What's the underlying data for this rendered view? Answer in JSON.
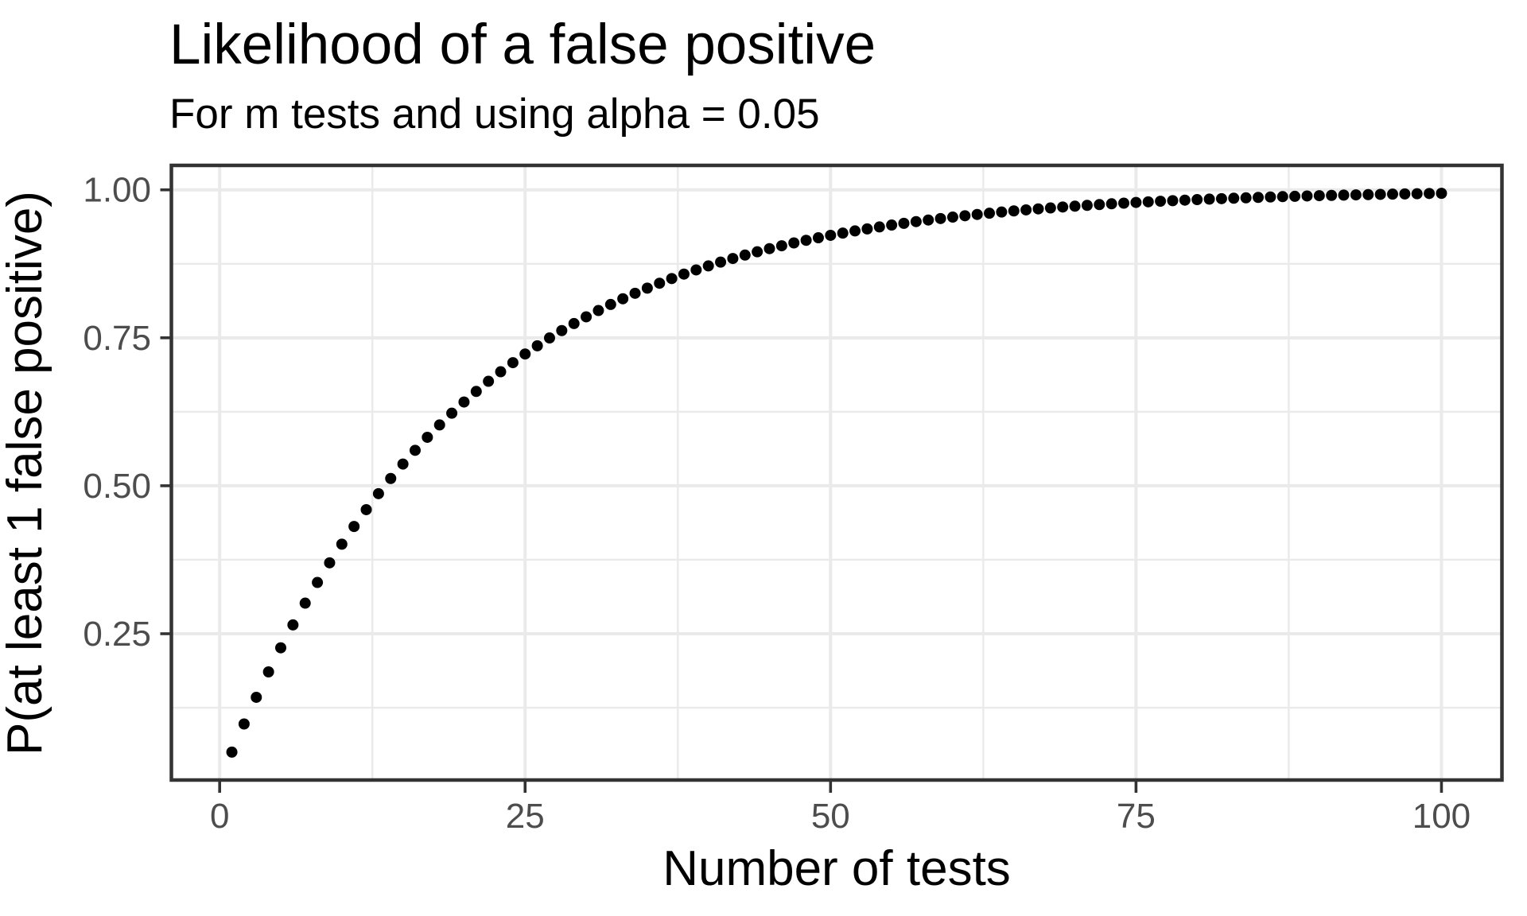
{
  "figure": {
    "title": "Likelihood of a false positive",
    "subtitle": "For m tests and using alpha = 0.05"
  },
  "colors": {
    "background": "#ffffff",
    "grid": "#eaeaea",
    "panel_border": "#333333",
    "tick": "#333333",
    "tick_label": "#4d4d4d",
    "title_text": "#000000",
    "point": "#000000"
  },
  "chart_data": {
    "type": "scatter",
    "title": "Likelihood of a false positive",
    "subtitle": "For m tests and using alpha = 0.05",
    "xlabel": "Number of tests",
    "ylabel": "P(at least 1 false positive)",
    "legend_position": "none",
    "grid": true,
    "point_shape": "filled-circle",
    "point_radius_px": 7,
    "xlim": [
      -3.95,
      104.95
    ],
    "ylim": [
      0.0028,
      1.0413
    ],
    "x_ticks": [
      0,
      25,
      50,
      75,
      100
    ],
    "x_tick_labels": [
      "0",
      "25",
      "50",
      "75",
      "100"
    ],
    "y_ticks": [
      0.25,
      0.5,
      0.75,
      1.0
    ],
    "y_tick_labels": [
      "0.25",
      "0.50",
      "0.75",
      "1.00"
    ],
    "x_minor": [
      12.5,
      37.5,
      62.5,
      87.5
    ],
    "y_minor": [
      0.125,
      0.375,
      0.625,
      0.875
    ],
    "x": [
      1,
      2,
      3,
      4,
      5,
      6,
      7,
      8,
      9,
      10,
      11,
      12,
      13,
      14,
      15,
      16,
      17,
      18,
      19,
      20,
      21,
      22,
      23,
      24,
      25,
      26,
      27,
      28,
      29,
      30,
      31,
      32,
      33,
      34,
      35,
      36,
      37,
      38,
      39,
      40,
      41,
      42,
      43,
      44,
      45,
      46,
      47,
      48,
      49,
      50,
      51,
      52,
      53,
      54,
      55,
      56,
      57,
      58,
      59,
      60,
      61,
      62,
      63,
      64,
      65,
      66,
      67,
      68,
      69,
      70,
      71,
      72,
      73,
      74,
      75,
      76,
      77,
      78,
      79,
      80,
      81,
      82,
      83,
      84,
      85,
      86,
      87,
      88,
      89,
      90,
      91,
      92,
      93,
      94,
      95,
      96,
      97,
      98,
      99,
      100
    ],
    "y": [
      0.05,
      0.0975,
      0.1426,
      0.1855,
      0.2262,
      0.2649,
      0.3017,
      0.3366,
      0.3698,
      0.4013,
      0.4312,
      0.4596,
      0.4867,
      0.5123,
      0.5367,
      0.5599,
      0.5819,
      0.6028,
      0.6226,
      0.6415,
      0.6594,
      0.6765,
      0.6926,
      0.708,
      0.7226,
      0.7365,
      0.7497,
      0.7622,
      0.7741,
      0.7854,
      0.7961,
      0.8063,
      0.816,
      0.8252,
      0.8339,
      0.8422,
      0.8501,
      0.8576,
      0.8647,
      0.8715,
      0.8779,
      0.884,
      0.8898,
      0.8953,
      0.9006,
      0.9055,
      0.9103,
      0.9147,
      0.919,
      0.9231,
      0.9269,
      0.9306,
      0.934,
      0.9373,
      0.9405,
      0.9434,
      0.9463,
      0.949,
      0.9515,
      0.9539,
      0.9562,
      0.9584,
      0.9605,
      0.9625,
      0.9644,
      0.9661,
      0.9678,
      0.9694,
      0.971,
      0.9724,
      0.9738,
      0.9751,
      0.9764,
      0.9775,
      0.9787,
      0.9797,
      0.9807,
      0.9817,
      0.9826,
      0.9835,
      0.9843,
      0.9851,
      0.9858,
      0.9865,
      0.9872,
      0.9879,
      0.9885,
      0.989,
      0.9896,
      0.9901,
      0.9906,
      0.9911,
      0.9915,
      0.9919,
      0.9923,
      0.9927,
      0.9931,
      0.9934,
      0.9938,
      0.9941
    ]
  }
}
